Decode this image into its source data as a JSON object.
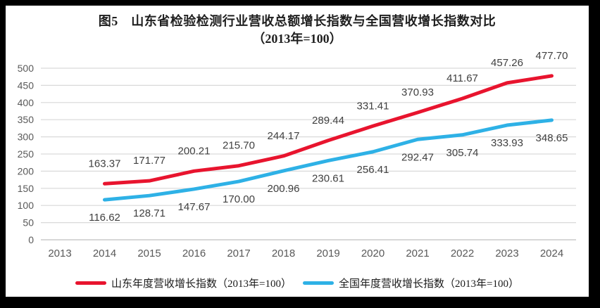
{
  "title": {
    "line1": "图5　山东省检验检测行业营收总额增长指数与全国营收增长指数对比",
    "line2": "（2013年=100）"
  },
  "chart_data": {
    "type": "line",
    "x_years": [
      2013,
      2014,
      2015,
      2016,
      2017,
      2018,
      2019,
      2020,
      2021,
      2022,
      2023,
      2024
    ],
    "ylim": [
      0,
      500
    ],
    "y_ticks": [
      0,
      50,
      100,
      150,
      200,
      250,
      300,
      350,
      400,
      450,
      500
    ],
    "grid": true,
    "legend_position": "bottom",
    "note": "index values, 2013 = 100; series plotted from 2014 onward",
    "series": [
      {
        "name": "山东年度营收增长指数（2013年=100）",
        "color": "#e8142e",
        "label_side": "above",
        "start_year": 2014,
        "values": [
          163.37,
          171.77,
          200.21,
          215.7,
          244.17,
          289.44,
          331.41,
          370.93,
          411.67,
          457.26,
          477.7
        ]
      },
      {
        "name": "全国年度营收增长指数（2013年=100）",
        "color": "#2eb1e6",
        "label_side": "below",
        "start_year": 2014,
        "values": [
          116.62,
          128.71,
          147.67,
          170.0,
          200.96,
          230.61,
          256.41,
          292.47,
          305.74,
          333.93,
          348.65
        ]
      }
    ]
  },
  "colors": {
    "grid": "#d9d9d9",
    "zero_line": "#bfbfbf",
    "axis_text": "#595959",
    "data_label": "#404040",
    "frame": "#000000",
    "background": "#ffffff"
  }
}
